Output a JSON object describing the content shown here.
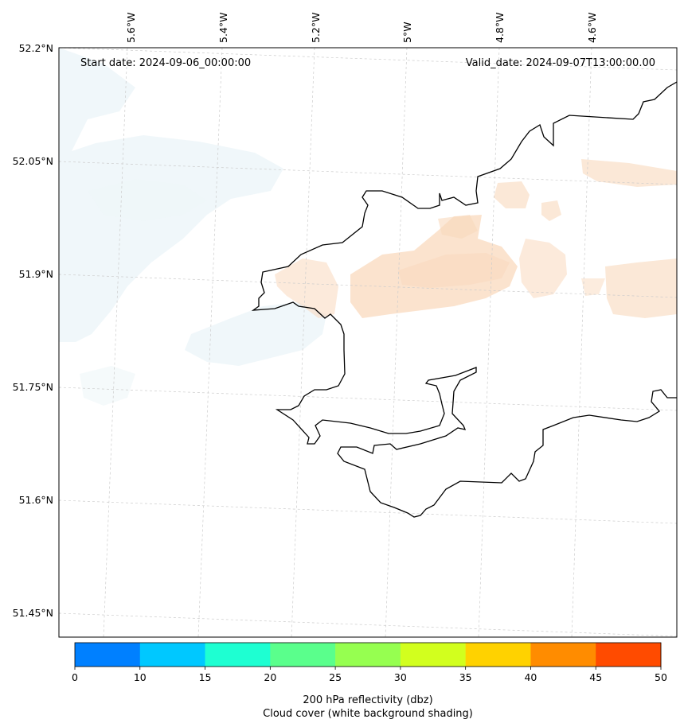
{
  "map": {
    "start_date": "Start date: 2024-09-06_00:00:00",
    "valid_date": "Valid_date: 2024-09-07T13:00:00.00",
    "lon_labels": [
      "5.6°W",
      "5.4°W",
      "5.2°W",
      "5°W",
      "4.8°W",
      "4.6°W"
    ],
    "lat_labels": [
      "52.2°N",
      "52.05°N",
      "51.9°N",
      "51.75°N",
      "51.6°N",
      "51.45°N"
    ],
    "gridlines": true,
    "coastline_color": "#000000",
    "cloud_shading_color": "#eef6f9",
    "reflectivity_shading_color": "#f9d9bd"
  },
  "colorbar": {
    "ticks": [
      "0",
      "10",
      "15",
      "20",
      "25",
      "30",
      "35",
      "40",
      "45",
      "50"
    ],
    "colors": [
      "#0080ff",
      "#00c8ff",
      "#1effd2",
      "#5aff8c",
      "#96ff50",
      "#d2ff1e",
      "#ffd200",
      "#ff8c00",
      "#ff4b00"
    ],
    "label_line1": "200 hPa reflectivity (dbz)",
    "label_line2": "Cloud cover (white background shading)"
  }
}
